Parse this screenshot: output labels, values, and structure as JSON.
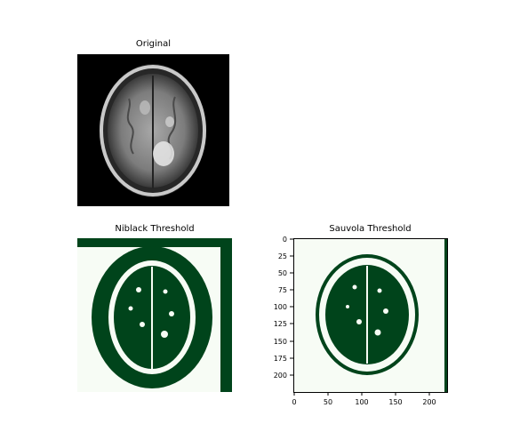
{
  "figure": {
    "panels": [
      {
        "id": "original",
        "title": "Original"
      },
      {
        "id": "niblack",
        "title": "Niblack Threshold"
      },
      {
        "id": "sauvola",
        "title": "Sauvola Threshold"
      }
    ],
    "colors": {
      "dark_green": "#00441b",
      "light_green": "#f7fcf5",
      "black": "#000000",
      "brain_gray": "#8a8a8a",
      "brain_bright": "#d9d9d9"
    },
    "sauvola_axes": {
      "x_ticks": [
        "0",
        "50",
        "100",
        "150",
        "200"
      ],
      "y_ticks": [
        "0",
        "25",
        "50",
        "75",
        "100",
        "125",
        "150",
        "175",
        "200"
      ]
    }
  }
}
